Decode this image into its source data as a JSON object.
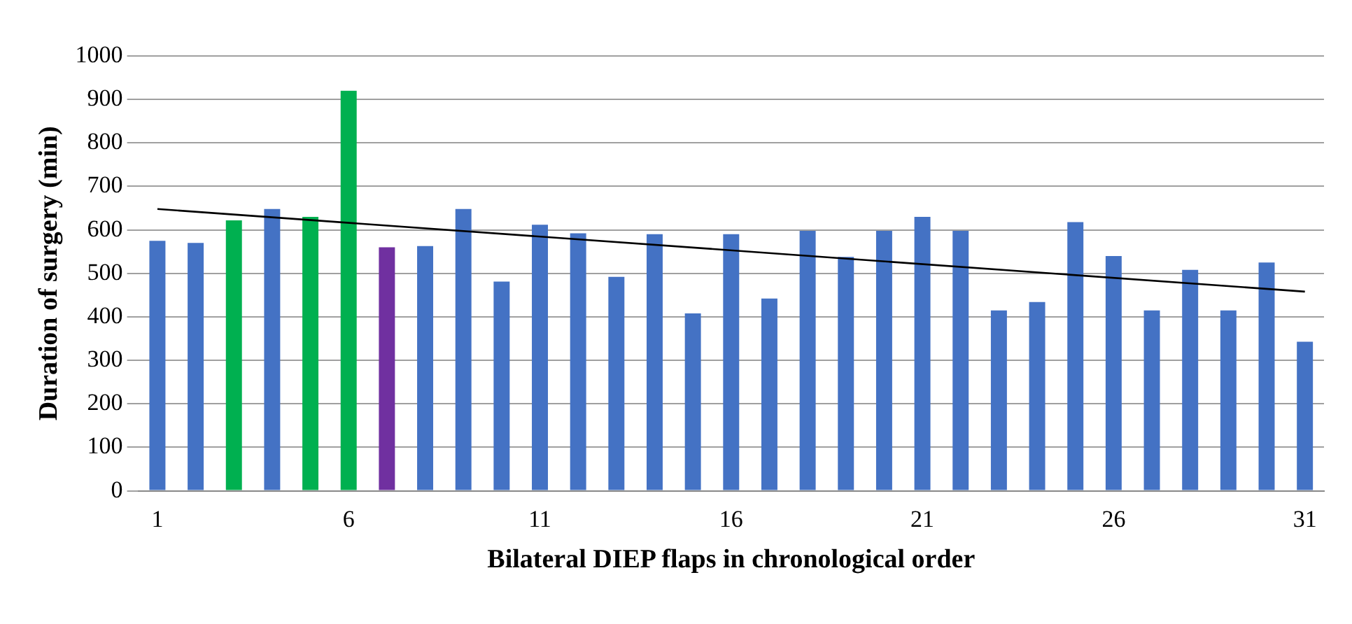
{
  "chart_data": {
    "type": "bar",
    "xlabel": "Bilateral DIEP flaps in chronological order",
    "ylabel": "Duration of surgery (min)",
    "x": [
      1,
      2,
      3,
      4,
      5,
      6,
      7,
      8,
      9,
      10,
      11,
      12,
      13,
      14,
      15,
      16,
      17,
      18,
      19,
      20,
      21,
      22,
      23,
      24,
      25,
      26,
      27,
      28,
      29,
      30,
      31
    ],
    "xlim": [
      0.5,
      31.5
    ],
    "xticks": [
      1,
      6,
      11,
      16,
      21,
      26,
      31
    ],
    "ylim": [
      0,
      1000
    ],
    "yticks": [
      0,
      100,
      200,
      300,
      400,
      500,
      600,
      700,
      800,
      900,
      1000
    ],
    "grid": "y",
    "legend": false,
    "marker": "none",
    "series": [
      {
        "colors": [
          "#4472c4",
          "#4472c4",
          "#00b050",
          "#4472c4",
          "#00b050",
          "#00b050",
          "#7030a0",
          "#4472c4",
          "#4472c4",
          "#4472c4",
          "#4472c4",
          "#4472c4",
          "#4472c4",
          "#4472c4",
          "#4472c4",
          "#4472c4",
          "#4472c4",
          "#4472c4",
          "#4472c4",
          "#4472c4",
          "#4472c4",
          "#4472c4",
          "#4472c4",
          "#4472c4",
          "#4472c4",
          "#4472c4",
          "#4472c4",
          "#4472c4",
          "#4472c4",
          "#4472c4",
          "#4472c4"
        ],
        "values": [
          575,
          570,
          622,
          648,
          630,
          920,
          560,
          563,
          648,
          481,
          612,
          592,
          492,
          590,
          408,
          590,
          442,
          598,
          538,
          598,
          630,
          598,
          415,
          434,
          618,
          540,
          415,
          508,
          415,
          525,
          343
        ]
      },
      {
        "type": "line",
        "color": "#000000",
        "x": [
          1,
          31
        ],
        "values": [
          648,
          458
        ]
      }
    ]
  }
}
